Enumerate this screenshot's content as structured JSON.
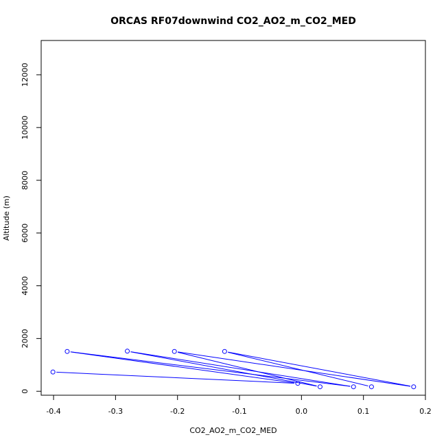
{
  "chart_data": {
    "type": "scatter",
    "title": "ORCAS RF07downwind CO2_AO2_m_CO2_MED",
    "xlabel": "CO2_AO2_m_CO2_MED",
    "ylabel": "Altitude (m)",
    "xlim": [
      -0.42,
      0.2
    ],
    "ylim": [
      -150,
      13300
    ],
    "x_ticks": [
      -0.4,
      -0.3,
      -0.2,
      -0.1,
      0.0,
      0.1,
      0.2
    ],
    "x_tick_labels": [
      "-0.4",
      "-0.3",
      "-0.2",
      "-0.1",
      "0.0",
      "0.1",
      "0.2"
    ],
    "y_ticks": [
      0,
      2000,
      4000,
      6000,
      8000,
      10000,
      12000
    ],
    "y_tick_labels": [
      "0",
      "2000",
      "4000",
      "6000",
      "8000",
      "10000",
      "12000"
    ],
    "grid": false,
    "series_color": "#0000ff",
    "points": [
      {
        "x": -0.401,
        "y": 730
      },
      {
        "x": -0.006,
        "y": 300
      },
      {
        "x": -0.378,
        "y": 1510
      },
      {
        "x": 0.084,
        "y": 170
      },
      {
        "x": -0.281,
        "y": 1520
      },
      {
        "x": 0.03,
        "y": 170
      },
      {
        "x": -0.205,
        "y": 1510
      },
      {
        "x": 0.181,
        "y": 170
      },
      {
        "x": -0.124,
        "y": 1510
      },
      {
        "x": 0.113,
        "y": 170
      }
    ]
  }
}
